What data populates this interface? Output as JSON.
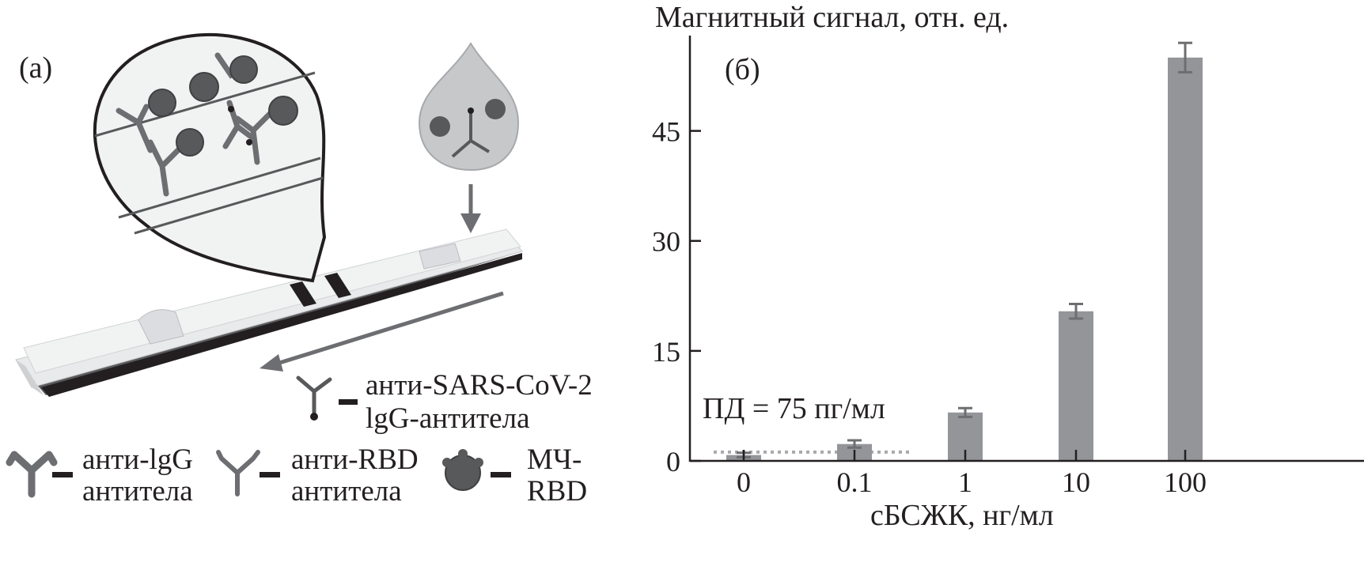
{
  "panel_a": {
    "label": "(а)",
    "legend": [
      {
        "icon": "anti-igg-antibody-icon",
        "text": "анти-lgG антитела"
      },
      {
        "icon": "anti-rbd-antibody-icon",
        "text": "анти-RBD антитела"
      },
      {
        "icon": "magnetic-particle-rbd-icon",
        "text": "МЧ-RBD"
      },
      {
        "icon": "anti-sars-cov-2-antibody-icon",
        "text": "анти-SARS-CoV-2 lgG-антитела"
      }
    ],
    "legend_lines": {
      "anti_igg_1": "анти-lgG",
      "anti_igg_2": "антитела",
      "anti_rbd_1": "анти-RBD",
      "anti_rbd_2": "антитела",
      "mp_rbd_1": "МЧ-",
      "mp_rbd_2": "RBD",
      "sars_1": "анти-SARS-CoV-2",
      "sars_2": "lgG-антитела"
    }
  },
  "panel_b": {
    "label": "(б)",
    "lod_annotation": "ПД = 75 пг/мл"
  },
  "colors": {
    "bar": "#939598",
    "axis": "#231f20",
    "lod_line": "#a7a9ac",
    "strip": "#e6e7e8"
  },
  "chart_data": {
    "type": "bar",
    "title": "",
    "ylabel": "Магнитный сигнал, отн. ед.",
    "xlabel": "сБСЖК, нг/мл",
    "categories": [
      "0",
      "0.1",
      "1",
      "10",
      "100"
    ],
    "values": [
      0.8,
      2.3,
      6.6,
      20.4,
      55.0
    ],
    "errors": [
      0.3,
      0.5,
      0.6,
      1.0,
      2.0
    ],
    "ylim": [
      0,
      58
    ],
    "yticks": [
      0,
      15,
      30,
      45
    ],
    "lod_value": 1.2,
    "grid": false
  }
}
